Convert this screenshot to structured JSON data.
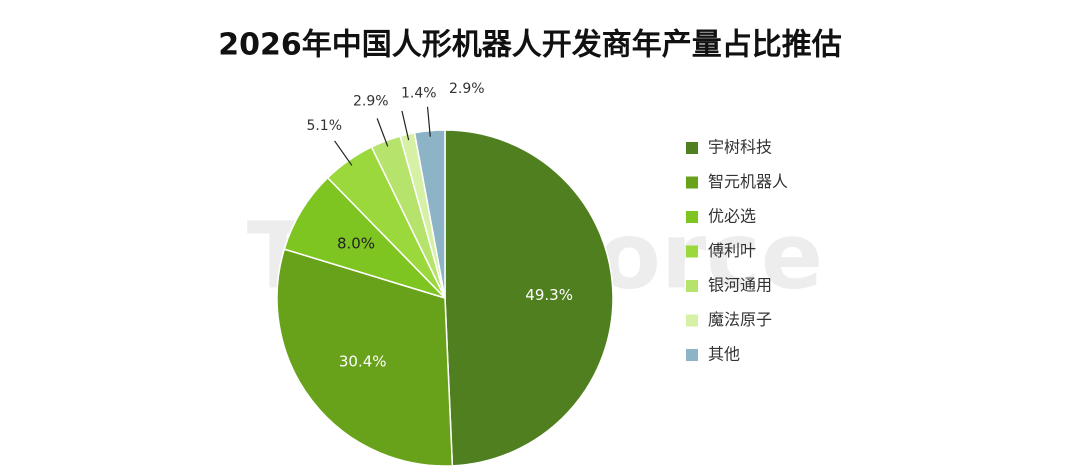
{
  "chart_data": {
    "type": "pie",
    "title": "2026年中国人形机器人开发商年产量占比推估",
    "watermark": "TrendForce",
    "categories": [
      "宇树科技",
      "智元机器人",
      "优必选",
      "傅利叶",
      "银河通用",
      "魔法原子",
      "其他"
    ],
    "values": [
      49.3,
      30.4,
      8.0,
      5.1,
      2.9,
      1.4,
      2.9
    ],
    "value_labels": [
      "49.3%",
      "30.4%",
      "8.0%",
      "5.1%",
      "2.9%",
      "1.4%",
      "2.9%"
    ],
    "colors": [
      "#4f7f1f",
      "#68a21a",
      "#7ec522",
      "#9ad83c",
      "#b6e36c",
      "#d6f1a6",
      "#8db3c6"
    ],
    "legend": "right"
  }
}
